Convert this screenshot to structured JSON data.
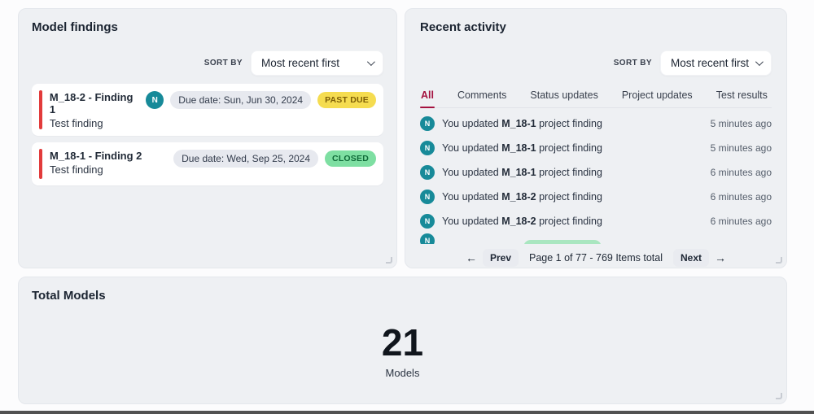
{
  "model_findings": {
    "title": "Model findings",
    "sort_by_label": "SORT BY",
    "sort_value": "Most recent first",
    "findings": [
      {
        "title": "M_18-2 - Finding 1",
        "subtitle": "Test finding",
        "avatar_initial": "N",
        "due_date": "Due date: Sun, Jun 30, 2024",
        "status": "PAST DUE"
      },
      {
        "title": "M_18-1 - Finding 2",
        "subtitle": "Test finding",
        "due_date": "Due date: Wed, Sep 25, 2024",
        "status": "CLOSED"
      }
    ]
  },
  "recent_activity": {
    "title": "Recent activity",
    "sort_by_label": "SORT BY",
    "sort_value": "Most recent first",
    "tabs": [
      {
        "label": "All",
        "active": true
      },
      {
        "label": "Comments",
        "active": false
      },
      {
        "label": "Status updates",
        "active": false
      },
      {
        "label": "Project updates",
        "active": false
      },
      {
        "label": "Test results",
        "active": false
      }
    ],
    "items": [
      {
        "avatar_initial": "N",
        "text_before": "You updated ",
        "model": "M_18-1",
        "text_after": " project finding",
        "time": "5 minutes ago"
      },
      {
        "avatar_initial": "N",
        "text_before": "You updated ",
        "model": "M_18-1",
        "text_after": " project finding",
        "time": "5 minutes ago"
      },
      {
        "avatar_initial": "N",
        "text_before": "You updated ",
        "model": "M_18-1",
        "text_after": " project finding",
        "time": "6 minutes ago"
      },
      {
        "avatar_initial": "N",
        "text_before": "You updated ",
        "model": "M_18-2",
        "text_after": " project finding",
        "time": "6 minutes ago"
      },
      {
        "avatar_initial": "N",
        "text_before": "You updated ",
        "model": "M_18-2",
        "text_after": " project finding",
        "time": "6 minutes ago"
      }
    ],
    "partial_item": {
      "avatar_initial": "N"
    },
    "pagination": {
      "prev_label": "Prev",
      "prev_arrow": "←",
      "next_label": "Next",
      "next_arrow": "→",
      "page_text": "Page 1 of 77 - 769 Items total"
    }
  },
  "total_models": {
    "title": "Total Models",
    "value": "21",
    "label": "Models"
  },
  "colors": {
    "accent_crimson": "#a4123f",
    "severity_red": "#e23b3b",
    "avatar_teal": "#178a99",
    "past_due_bg": "#f5dc50",
    "past_due_text": "#7d5e07",
    "closed_bg": "#7edfa2",
    "closed_text": "#0f6a38",
    "panel_bg": "#eef0f3"
  }
}
